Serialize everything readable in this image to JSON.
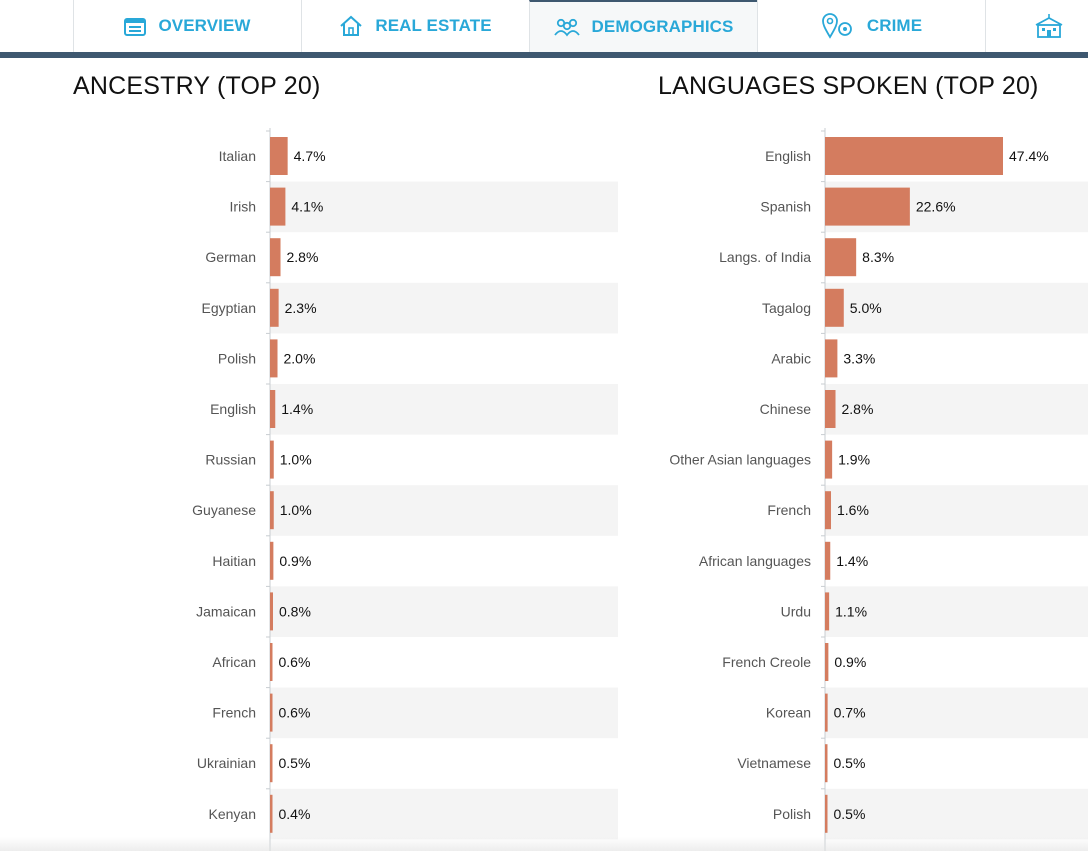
{
  "nav": {
    "tabs": [
      {
        "label": "OVERVIEW",
        "icon": "calendar-icon"
      },
      {
        "label": "REAL ESTATE",
        "icon": "house-icon"
      },
      {
        "label": "DEMOGRAPHICS",
        "icon": "people-icon",
        "active": true
      },
      {
        "label": "CRIME",
        "icon": "map-pin-icon"
      },
      {
        "label": "",
        "icon": "school-icon"
      }
    ]
  },
  "colors": {
    "bar": "#d47c5f",
    "stripe": "#f4f4f4",
    "accent": "#29a8d8",
    "navbar": "#3e5870"
  },
  "chart_data": [
    {
      "type": "bar",
      "orientation": "horizontal",
      "title": "ANCESTRY (TOP 20)",
      "unit": "%",
      "categories": [
        "Italian",
        "Irish",
        "German",
        "Egyptian",
        "Polish",
        "English",
        "Russian",
        "Guyanese",
        "Haitian",
        "Jamaican",
        "African",
        "French",
        "Ukrainian",
        "Kenyan"
      ],
      "values": [
        4.7,
        4.1,
        2.8,
        2.3,
        2.0,
        1.4,
        1.0,
        1.0,
        0.9,
        0.8,
        0.6,
        0.6,
        0.5,
        0.4
      ],
      "value_labels": [
        "4.7%",
        "4.1%",
        "2.8%",
        "2.3%",
        "2.0%",
        "1.4%",
        "1.0%",
        "1.0%",
        "0.9%",
        "0.8%",
        "0.6%",
        "0.6%",
        "0.5%",
        "0.4%"
      ],
      "xlim": [
        0,
        47.4
      ]
    },
    {
      "type": "bar",
      "orientation": "horizontal",
      "title": "LANGUAGES SPOKEN (TOP 20)",
      "unit": "%",
      "categories": [
        "English",
        "Spanish",
        "Langs. of India",
        "Tagalog",
        "Arabic",
        "Chinese",
        "Other Asian languages",
        "French",
        "African languages",
        "Urdu",
        "French Creole",
        "Korean",
        "Vietnamese",
        "Polish"
      ],
      "values": [
        47.4,
        22.6,
        8.3,
        5.0,
        3.3,
        2.8,
        1.9,
        1.6,
        1.4,
        1.1,
        0.9,
        0.7,
        0.5,
        0.5
      ],
      "value_labels": [
        "47.4%",
        "22.6%",
        "8.3%",
        "5.0%",
        "3.3%",
        "2.8%",
        "1.9%",
        "1.6%",
        "1.4%",
        "1.1%",
        "0.9%",
        "0.7%",
        "0.5%",
        "0.5%"
      ],
      "xlim": [
        0,
        47.4
      ]
    }
  ]
}
